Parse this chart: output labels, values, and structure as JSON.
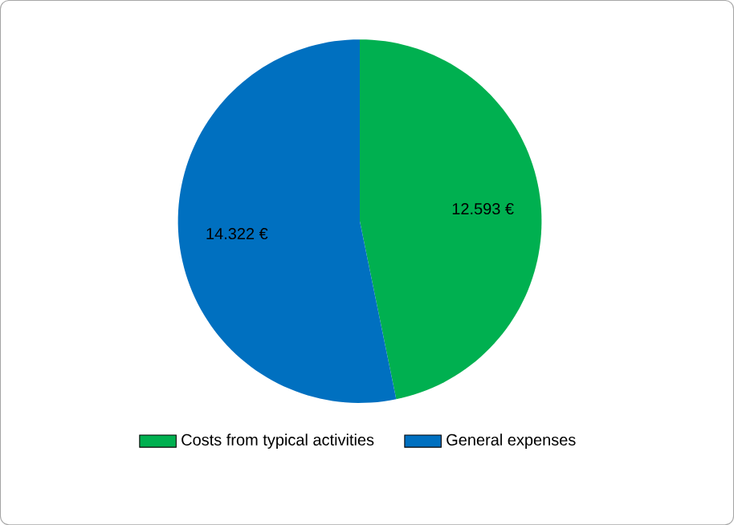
{
  "chart_data": {
    "type": "pie",
    "categories": [
      "Costs from typical activities",
      "General expenses"
    ],
    "values": [
      12593,
      14322
    ],
    "value_labels": [
      "12.593 €",
      "14.322 €"
    ],
    "colors": [
      "#00b050",
      "#0070c0"
    ],
    "legend": "bottom"
  }
}
